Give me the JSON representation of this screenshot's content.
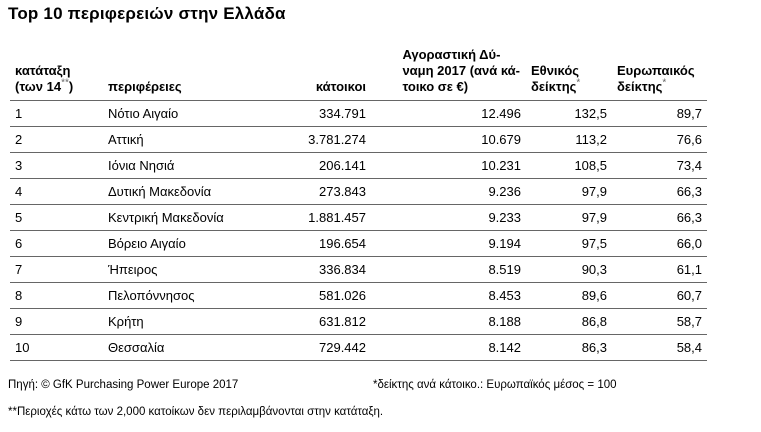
{
  "title": "Top 10 περιφερειών στην Ελλάδα",
  "headers": {
    "rank_line1": "κατάταξη",
    "rank_line2": "(των 14",
    "rank_sup": "**",
    "rank_close": ")",
    "region": "περιφέρειες",
    "inhabitants": "κάτοικοι",
    "power_line1": "Αγοραστική Δύ-",
    "power_line2": "ναμη 2017 (ανά κά-",
    "power_line3": "τοικο σε €)",
    "national_line1": "Εθνικός",
    "national_line2": "δείκτης",
    "national_sup": "*",
    "european_line1": "Ευρωπαικός",
    "european_line2": "δείκτης",
    "european_sup": "*"
  },
  "rows": [
    {
      "rank": "1",
      "region": "Νότιο Αιγαίο",
      "inhabitants": "334.791",
      "power": "12.496",
      "national": "132,5",
      "european": "89,7"
    },
    {
      "rank": "2",
      "region": "Αττική",
      "inhabitants": "3.781.274",
      "power": "10.679",
      "national": "113,2",
      "european": "76,6"
    },
    {
      "rank": "3",
      "region": "Ιόνια Νησιά",
      "inhabitants": "206.141",
      "power": "10.231",
      "national": "108,5",
      "european": "73,4"
    },
    {
      "rank": "4",
      "region": "Δυτική Μακεδονία",
      "inhabitants": "273.843",
      "power": "9.236",
      "national": "97,9",
      "european": "66,3"
    },
    {
      "rank": "5",
      "region": "Κεντρική Μακεδονία",
      "inhabitants": "1.881.457",
      "power": "9.233",
      "national": "97,9",
      "european": "66,3"
    },
    {
      "rank": "6",
      "region": "Βόρειο Αιγαίο",
      "inhabitants": "196.654",
      "power": "9.194",
      "national": "97,5",
      "european": "66,0"
    },
    {
      "rank": "7",
      "region": "Ήπειρος",
      "inhabitants": "336.834",
      "power": "8.519",
      "national": "90,3",
      "european": "61,1"
    },
    {
      "rank": "8",
      "region": "Πελοπόννησος",
      "inhabitants": "581.026",
      "power": "8.453",
      "national": "89,6",
      "european": "60,7"
    },
    {
      "rank": "9",
      "region": "Κρήτη",
      "inhabitants": "631.812",
      "power": "8.188",
      "national": "86,8",
      "european": "58,7"
    },
    {
      "rank": "10",
      "region": "Θεσσαλία",
      "inhabitants": "729.442",
      "power": "8.142",
      "national": "86,3",
      "european": "58,4"
    }
  ],
  "footer": {
    "source": "Πηγή: © GfK Purchasing Power Europe 2017",
    "per_capita_note": "*δείκτης ανά κάτοικο.: Ευρωπαϊκός μέσος = 100",
    "regions_note": "**Περιοχές κάτω των 2,000 κατοίκων δεν περιλαμβάνονται στην κατάταξη."
  }
}
